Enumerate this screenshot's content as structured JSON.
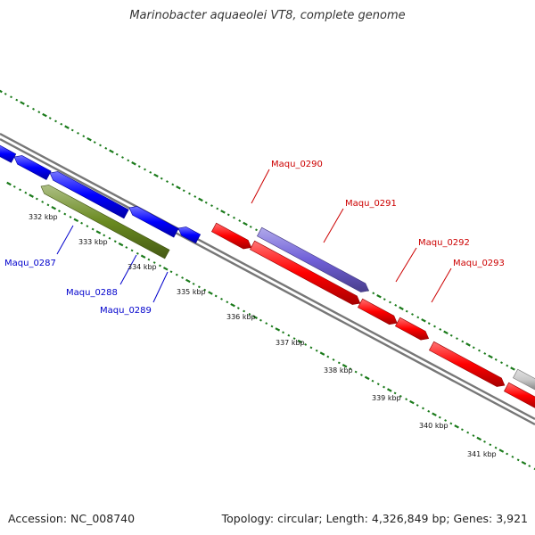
{
  "title": "Marinobacter aquaeolei VT8, complete genome",
  "footer": {
    "accession": "Accession: NC_008740",
    "summary": "Topology: circular; Length: 4,326,849 bp; Genes: 3,921"
  },
  "colors": {
    "forward_cds": "#ff0000",
    "reverse_cds": "#0000ff",
    "forward_other": "#7060d8",
    "reverse_other": "#6a8a20",
    "gray_feature": "#c8c8c8",
    "backbone": "#777777",
    "ticks": "#1a7a1a"
  },
  "gene_labels": [
    {
      "id": "Maqu_0287",
      "text": "Maqu_0287",
      "strand": "reverse"
    },
    {
      "id": "Maqu_0288",
      "text": "Maqu_0288",
      "strand": "reverse"
    },
    {
      "id": "Maqu_0289",
      "text": "Maqu_0289",
      "strand": "reverse"
    },
    {
      "id": "Maqu_0290",
      "text": "Maqu_0290",
      "strand": "forward"
    },
    {
      "id": "Maqu_0291",
      "text": "Maqu_0291",
      "strand": "forward"
    },
    {
      "id": "Maqu_0292",
      "text": "Maqu_0292",
      "strand": "forward"
    },
    {
      "id": "Maqu_0293",
      "text": "Maqu_0293",
      "strand": "forward"
    }
  ],
  "scale_labels": [
    "332 kbp",
    "333 kbp",
    "334 kbp",
    "335 kbp",
    "336 kbp",
    "337 kbp",
    "338 kbp",
    "339 kbp",
    "340 kbp",
    "341 kbp"
  ]
}
